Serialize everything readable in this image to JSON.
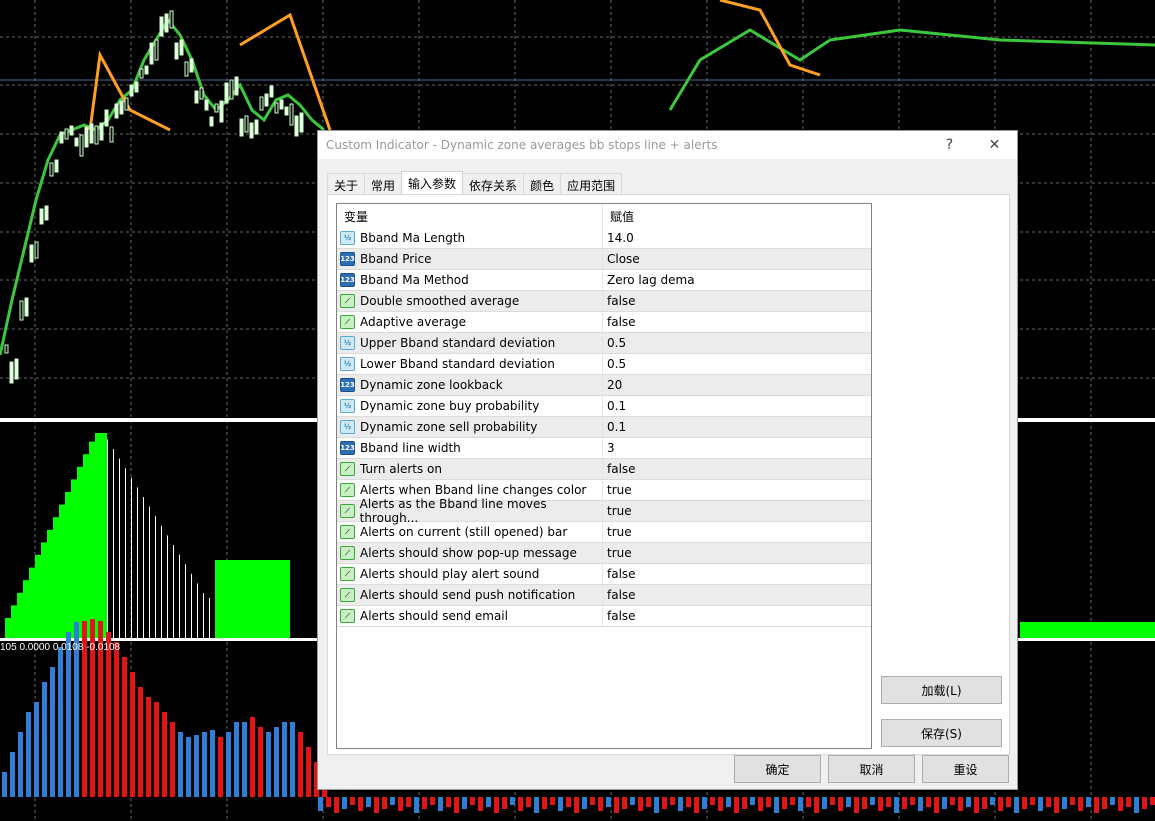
{
  "chart": {
    "subwindow_label": "105 0.0000 0.0108 -0.0108",
    "colors": {
      "up_line": "#3cc83c",
      "down_line": "#ffa020",
      "histogram": "#00ff00",
      "pos_bar": "#2f7fd8",
      "neg_bar": "#e01515"
    }
  },
  "dialog": {
    "title": "Custom Indicator - Dynamic zone averages bb stops line + alerts",
    "help_label": "?",
    "close_label": "✕",
    "tabs": [
      {
        "label": "关于"
      },
      {
        "label": "常用"
      },
      {
        "label": "输入参数"
      },
      {
        "label": "依存关系"
      },
      {
        "label": "颜色"
      },
      {
        "label": "应用范围"
      }
    ],
    "active_tab": "输入参数",
    "table": {
      "headers": {
        "variable": "变量",
        "value": "赋值"
      },
      "rows": [
        {
          "icon": "half",
          "name": "Bband Ma Length",
          "value": "14.0"
        },
        {
          "icon": "int",
          "name": "Bband Price",
          "value": "Close"
        },
        {
          "icon": "int",
          "name": "Bband Ma Method",
          "value": "Zero lag dema"
        },
        {
          "icon": "bool",
          "name": "Double smoothed average",
          "value": "false"
        },
        {
          "icon": "bool",
          "name": "Adaptive average",
          "value": "false"
        },
        {
          "icon": "half",
          "name": "Upper Bband standard deviation",
          "value": "0.5"
        },
        {
          "icon": "half",
          "name": "Lower Bband standard deviation",
          "value": "0.5"
        },
        {
          "icon": "int",
          "name": "Dynamic zone lookback",
          "value": "20"
        },
        {
          "icon": "half",
          "name": "Dynamic zone buy probability",
          "value": "0.1"
        },
        {
          "icon": "half",
          "name": "Dynamic zone sell probability",
          "value": "0.1"
        },
        {
          "icon": "int",
          "name": "Bband line width",
          "value": "3"
        },
        {
          "icon": "bool",
          "name": "Turn alerts on",
          "value": "false"
        },
        {
          "icon": "bool",
          "name": "Alerts when Bband line changes color",
          "value": "true"
        },
        {
          "icon": "bool",
          "name": "Alerts as the Bband line moves through...",
          "value": "true"
        },
        {
          "icon": "bool",
          "name": "Alerts on current (still opened) bar",
          "value": "true"
        },
        {
          "icon": "bool",
          "name": "Alerts should show pop-up message",
          "value": "true"
        },
        {
          "icon": "bool",
          "name": "Alerts should play alert sound",
          "value": "false"
        },
        {
          "icon": "bool",
          "name": "Alerts should send push notification",
          "value": "false"
        },
        {
          "icon": "bool",
          "name": "Alerts should send email",
          "value": "false"
        }
      ]
    },
    "icon_glyphs": {
      "half": "½",
      "int": "123",
      "bool": "⟋"
    },
    "buttons": {
      "load": "加载(L)",
      "save": "保存(S)",
      "ok": "确定",
      "cancel": "取消",
      "reset": "重设"
    }
  }
}
